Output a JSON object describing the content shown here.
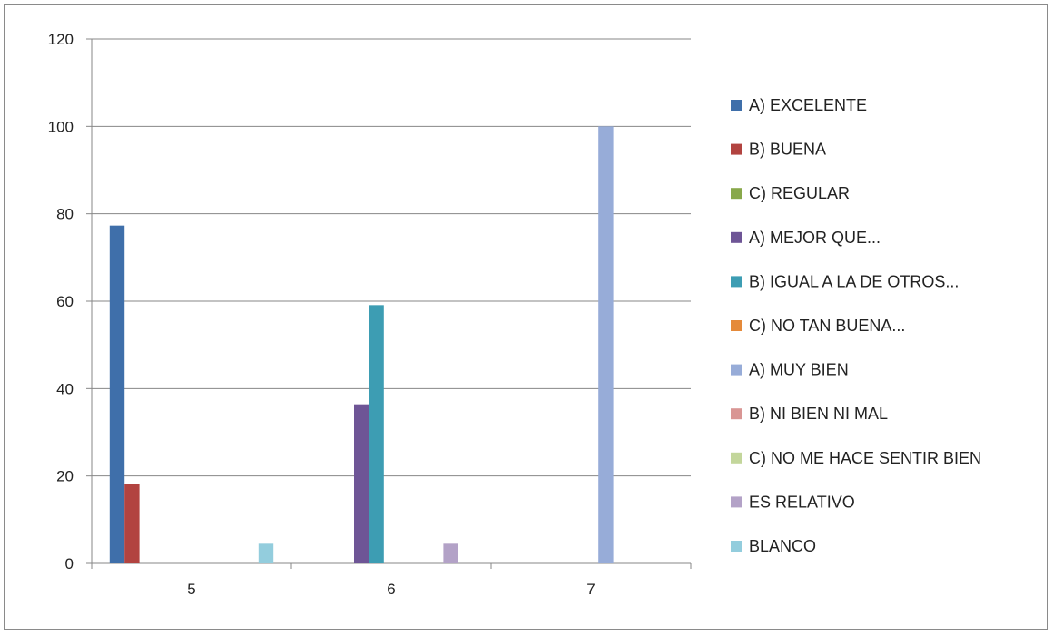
{
  "chart_data": {
    "type": "bar",
    "title": "",
    "xlabel": "",
    "ylabel": "",
    "categories": [
      "5",
      "6",
      "7"
    ],
    "ylim": [
      0,
      120
    ],
    "yticks": [
      0,
      20,
      40,
      60,
      80,
      100,
      120
    ],
    "grid": true,
    "legend_position": "right",
    "series": [
      {
        "name": "A) EXCELENTE",
        "color": "#3f6faa",
        "values": [
          77.3,
          0,
          0
        ]
      },
      {
        "name": "B) BUENA",
        "color": "#b24340",
        "values": [
          18.2,
          0,
          0
        ]
      },
      {
        "name": "C) REGULAR",
        "color": "#88a84a",
        "values": [
          0,
          0,
          0
        ]
      },
      {
        "name": "A) MEJOR QUE...",
        "color": "#6e5596",
        "values": [
          0,
          36.4,
          0
        ]
      },
      {
        "name": "B) IGUAL A LA DE OTROS...",
        "color": "#3d9db3",
        "values": [
          0,
          59.1,
          0
        ]
      },
      {
        "name": "C) NO TAN BUENA...",
        "color": "#e58a3a",
        "values": [
          0,
          0,
          0
        ]
      },
      {
        "name": "A) MUY BIEN",
        "color": "#97acd8",
        "values": [
          0,
          0,
          100
        ]
      },
      {
        "name": "B) NI BIEN NI MAL",
        "color": "#d99694",
        "values": [
          0,
          0,
          0
        ]
      },
      {
        "name": "C) NO ME HACE SENTIR BIEN",
        "color": "#c3d69b",
        "values": [
          0,
          0,
          0
        ]
      },
      {
        "name": "ES RELATIVO",
        "color": "#b3a2c7",
        "values": [
          0,
          4.5,
          0
        ]
      },
      {
        "name": "BLANCO",
        "color": "#93cddd",
        "values": [
          4.5,
          0,
          0
        ]
      }
    ]
  }
}
